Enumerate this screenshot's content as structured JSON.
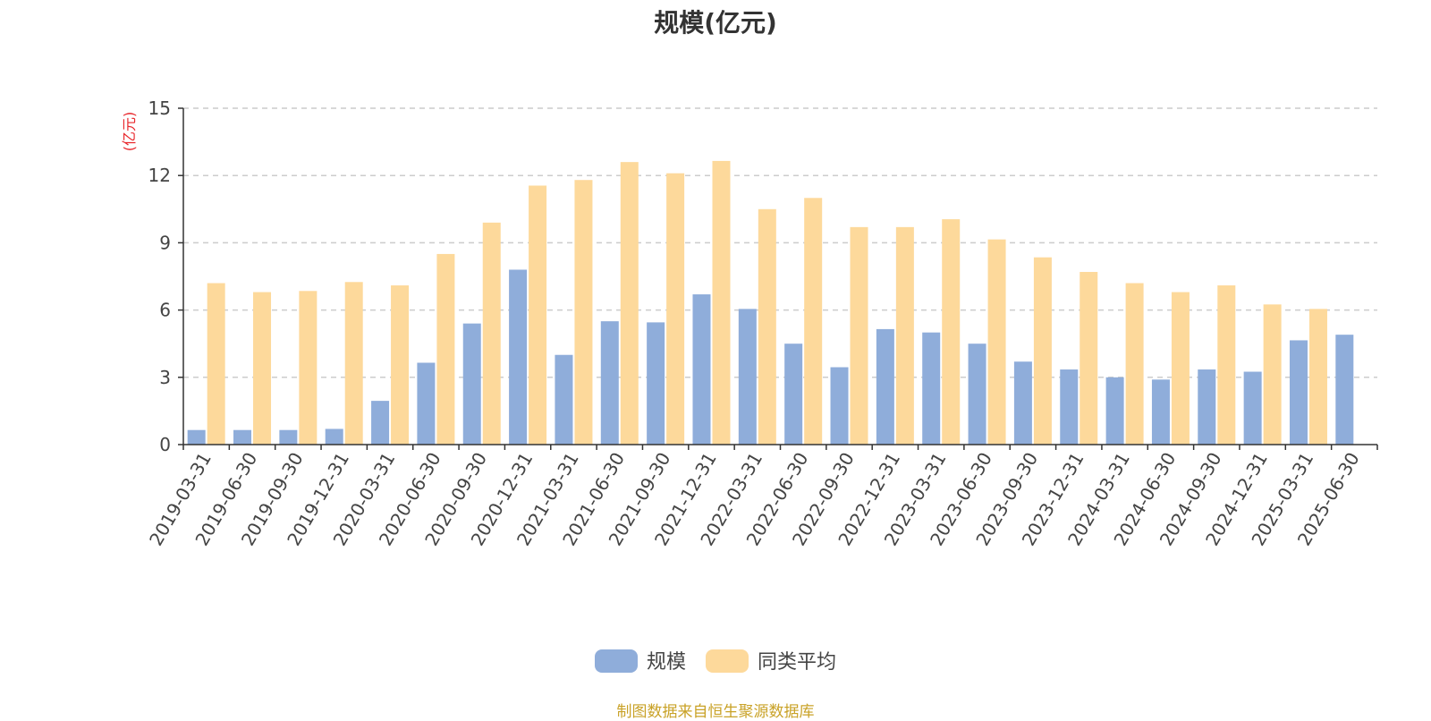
{
  "title": "规模(亿元)",
  "source_note": "制图数据来自恒生聚源数据库",
  "chart_data": {
    "type": "bar",
    "title": "规模(亿元)",
    "ylabel": "(亿元)",
    "ylim": [
      0,
      15
    ],
    "yticks": [
      0,
      3,
      6,
      9,
      12,
      15
    ],
    "grid": true,
    "legend_position": "bottom",
    "categories": [
      "2019-03-31",
      "2019-06-30",
      "2019-09-30",
      "2019-12-31",
      "2020-03-31",
      "2020-06-30",
      "2020-09-30",
      "2020-12-31",
      "2021-03-31",
      "2021-06-30",
      "2021-09-30",
      "2021-12-31",
      "2022-03-31",
      "2022-06-30",
      "2022-09-30",
      "2022-12-31",
      "2023-03-31",
      "2023-06-30",
      "2023-09-30",
      "2023-12-31",
      "2024-03-31",
      "2024-06-30",
      "2024-09-30",
      "2024-12-31",
      "2025-03-31",
      "2025-06-30"
    ],
    "series": [
      {
        "name": "规模",
        "color": "#8fadda",
        "values": [
          0.65,
          0.65,
          0.65,
          0.7,
          1.95,
          3.65,
          5.4,
          7.8,
          4.0,
          5.5,
          5.45,
          6.7,
          6.05,
          4.5,
          3.45,
          5.15,
          5.0,
          4.5,
          3.7,
          3.35,
          3.0,
          2.9,
          3.35,
          3.25,
          4.65,
          4.9
        ]
      },
      {
        "name": "同类平均",
        "color": "#fdd99b",
        "values": [
          7.2,
          6.8,
          6.85,
          7.25,
          7.1,
          8.5,
          9.9,
          11.55,
          11.8,
          12.6,
          12.1,
          12.65,
          10.5,
          11.0,
          9.7,
          9.7,
          10.05,
          9.15,
          8.35,
          7.7,
          7.2,
          6.8,
          7.1,
          6.25,
          6.05,
          null
        ]
      }
    ]
  }
}
